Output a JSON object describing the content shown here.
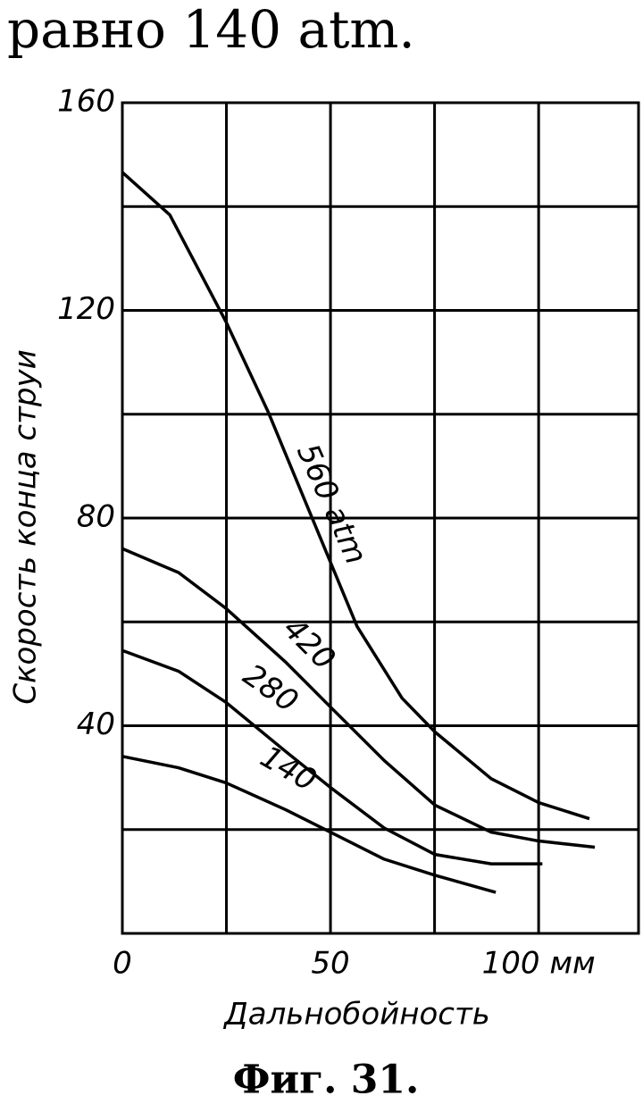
{
  "text_above": "равно 140 atm.",
  "caption": "Фиг. 31.",
  "chart_data": {
    "type": "line",
    "x_label": "Дальнобойность",
    "y_label": "Скорость конца струи",
    "xlim": [
      0,
      124
    ],
    "ylim": [
      0,
      160
    ],
    "xticks": [
      0,
      50,
      {
        "value": 100,
        "label": "100 мм"
      }
    ],
    "yticks": [
      40,
      80,
      120,
      160
    ],
    "xminor": [
      25,
      75
    ],
    "yminor": [
      20,
      60,
      100,
      140
    ],
    "grid": true,
    "series": [
      {
        "name": "560 atm",
        "color": "#000000",
        "x": [
          0,
          11.4,
          24.9,
          35,
          45.7,
          56.4,
          67.2,
          75.1,
          88.6,
          100,
          112.2
        ],
        "values": [
          146.6,
          138.4,
          117.8,
          100.5,
          79.8,
          59.1,
          45.3,
          38.8,
          29.8,
          25.2,
          22.1
        ]
      },
      {
        "name": "420",
        "color": "#000000",
        "x": [
          0,
          13.5,
          24.9,
          39.3,
          50,
          62.9,
          75.1,
          88.6,
          100,
          113.5
        ],
        "values": [
          74.1,
          69.5,
          62.6,
          52.2,
          43.6,
          33.3,
          24.7,
          19.5,
          17.8,
          16.6
        ]
      },
      {
        "name": "280",
        "color": "#000000",
        "x": [
          0,
          13.5,
          24.9,
          39.3,
          50,
          62.9,
          75.1,
          88.6,
          100.9
        ],
        "values": [
          54.5,
          50.5,
          44.5,
          35,
          28.1,
          20.3,
          15.2,
          13.4,
          13.4
        ]
      },
      {
        "name": "140",
        "color": "#000000",
        "x": [
          0,
          13.5,
          24.9,
          39.3,
          50,
          62.9,
          75.1,
          89.7
        ],
        "values": [
          34.1,
          31.9,
          29,
          23.8,
          19.5,
          14.3,
          11.2,
          7.9
        ]
      }
    ]
  }
}
